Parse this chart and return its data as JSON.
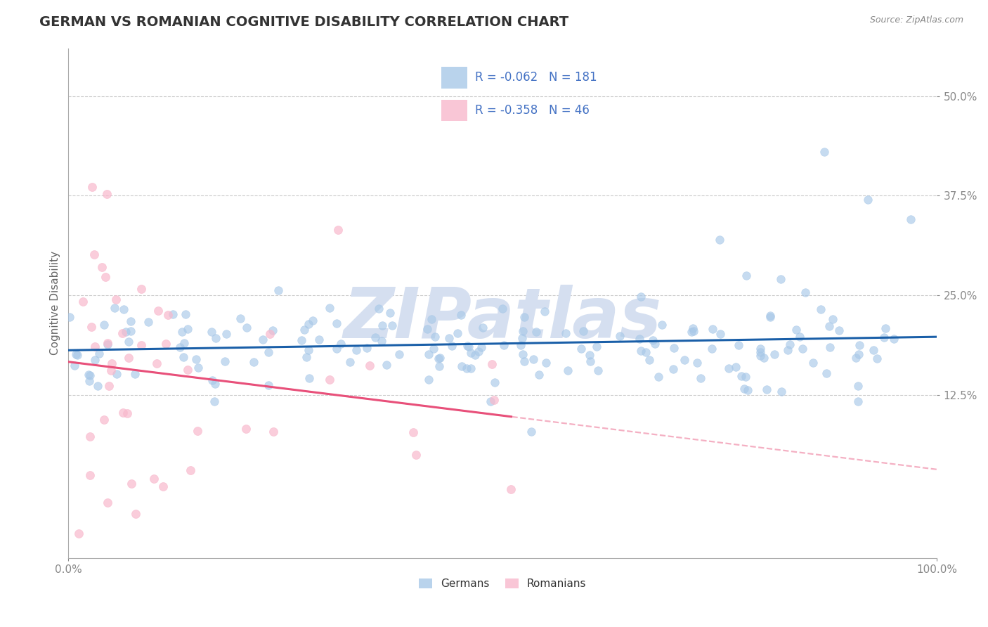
{
  "title": "GERMAN VS ROMANIAN COGNITIVE DISABILITY CORRELATION CHART",
  "source_text": "Source: ZipAtlas.com",
  "ylabel": "Cognitive Disability",
  "watermark": "ZIPatlas",
  "legend_entries": [
    {
      "label": "Germans",
      "color": "#a8c8e8",
      "R": "-0.062",
      "N": "181"
    },
    {
      "label": "Romanians",
      "color": "#f8b8cc",
      "R": "-0.358",
      "N": "46"
    }
  ],
  "german_color": "#a8c8e8",
  "romanian_color": "#f8b8cc",
  "german_line_color": "#1a5fa8",
  "romanian_line_color": "#e8507a",
  "background_color": "#ffffff",
  "grid_color": "#cccccc",
  "title_color": "#333333",
  "title_fontsize": 14,
  "axis_label_fontsize": 11,
  "tick_fontsize": 11,
  "tick_color": "#4472c4",
  "watermark_color": "#d5dff0",
  "watermark_fontsize": 72,
  "legend_text_color": "#4472c4",
  "legend_fontsize": 12,
  "xlim": [
    0.0,
    1.0
  ],
  "ylim": [
    -0.08,
    0.56
  ],
  "ytick_vals": [
    0.125,
    0.25,
    0.375,
    0.5
  ],
  "ytick_labels": [
    "12.5%",
    "25.0%",
    "37.5%",
    "50.0%"
  ],
  "xtick_vals": [
    0.0,
    1.0
  ],
  "xtick_labels": [
    "0.0%",
    "100.0%"
  ]
}
